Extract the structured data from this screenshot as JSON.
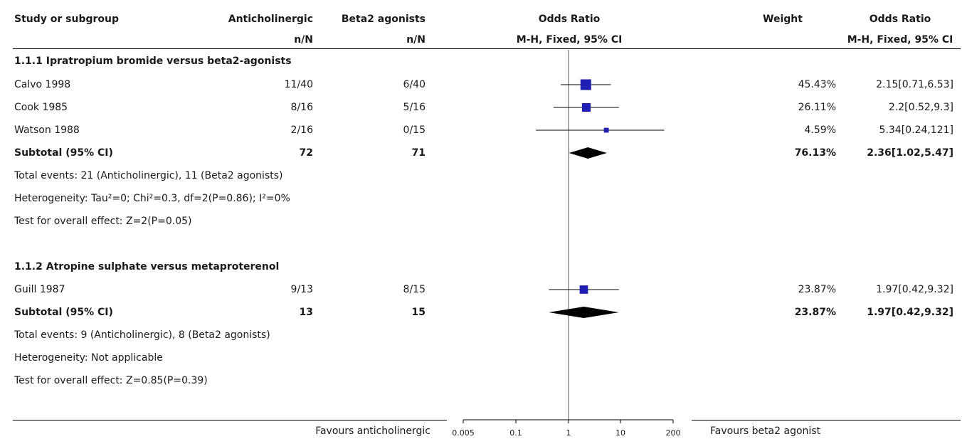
{
  "header": {
    "col_study": "Study or subgroup",
    "col_anti": "Anticholinergic",
    "col_beta": "Beta2 agonists",
    "col_or_plot": "Odds Ratio",
    "col_weight": "Weight",
    "col_or_text": "Odds Ratio",
    "sub_anti": "n/N",
    "sub_beta": "n/N",
    "sub_or_plot": "M-H, Fixed, 95% CI",
    "sub_or_text": "M-H, Fixed, 95% CI"
  },
  "groups": [
    {
      "title": "1.1.1 Ipratropium bromide versus beta2-agonists",
      "studies": [
        {
          "name": "Calvo 1998",
          "anti": "11/40",
          "beta": "6/40",
          "weight": "45.43%",
          "ci_text": "2.15[0.71,6.53]"
        },
        {
          "name": "Cook 1985",
          "anti": "8/16",
          "beta": "5/16",
          "weight": "26.11%",
          "ci_text": "2.2[0.52,9.3]"
        },
        {
          "name": "Watson 1988",
          "anti": "2/16",
          "beta": "0/15",
          "weight": "4.59%",
          "ci_text": "5.34[0.24,121]"
        }
      ],
      "subtotal": {
        "label": "Subtotal (95% CI)",
        "anti": "72",
        "beta": "71",
        "weight": "76.13%",
        "ci_text": "2.36[1.02,5.47]"
      },
      "notes": [
        "Total events: 21 (Anticholinergic), 11 (Beta2 agonists)",
        "Heterogeneity: Tau²=0; Chi²=0.3, df=2(P=0.86); I²=0%",
        "Test for overall effect: Z=2(P=0.05)"
      ]
    },
    {
      "title": "1.1.2 Atropine sulphate versus metaproterenol",
      "studies": [
        {
          "name": "Guill 1987",
          "anti": "9/13",
          "beta": "8/15",
          "weight": "23.87%",
          "ci_text": "1.97[0.42,9.32]"
        }
      ],
      "subtotal": {
        "label": "Subtotal (95% CI)",
        "anti": "13",
        "beta": "15",
        "weight": "23.87%",
        "ci_text": "1.97[0.42,9.32]"
      },
      "notes": [
        "Total events: 9 (Anticholinergic), 8 (Beta2 agonists)",
        "Heterogeneity: Not applicable",
        "Test for overall effect: Z=0.85(P=0.39)"
      ]
    }
  ],
  "footer": {
    "favours_left": "Favours anticholinergic",
    "favours_right": "Favours beta2 agonist"
  },
  "chart_data": {
    "type": "forest",
    "scale": "log",
    "xlim": [
      0.005,
      200
    ],
    "ticks": [
      "0.005",
      "0.1",
      "1",
      "10",
      "200"
    ],
    "tick_values": [
      0.005,
      0.1,
      1,
      10,
      200
    ],
    "null_line": 1,
    "colors": {
      "square": "#1f1fb4",
      "diamond": "#000000",
      "line": "#000000"
    },
    "studies": [
      {
        "name": "Calvo 1998",
        "or": 2.15,
        "lo": 0.71,
        "hi": 6.53,
        "weight": 45.43
      },
      {
        "name": "Cook 1985",
        "or": 2.2,
        "lo": 0.52,
        "hi": 9.3,
        "weight": 26.11
      },
      {
        "name": "Watson 1988",
        "or": 5.34,
        "lo": 0.24,
        "hi": 121,
        "weight": 4.59
      },
      {
        "name": "Guill 1987",
        "or": 1.97,
        "lo": 0.42,
        "hi": 9.32,
        "weight": 23.87
      }
    ],
    "subtotals": [
      {
        "label": "Subtotal 1.1.1",
        "or": 2.36,
        "lo": 1.02,
        "hi": 5.47
      },
      {
        "label": "Subtotal 1.1.2",
        "or": 1.97,
        "lo": 0.42,
        "hi": 9.32
      }
    ]
  }
}
